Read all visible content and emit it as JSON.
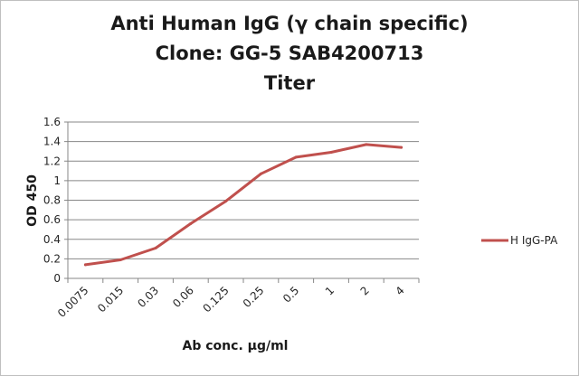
{
  "chart_data": {
    "type": "line",
    "title_lines": [
      "Anti Human IgG (γ chain specific)",
      "Clone: GG-5  SAB4200713",
      "Titer"
    ],
    "xlabel": "Ab conc. µg/ml",
    "ylabel": "OD 450",
    "categories": [
      "0.0075",
      "0.015",
      "0.03",
      "0.06",
      "0.125",
      "0.25",
      "0.5",
      "1",
      "2",
      "4"
    ],
    "y_ticks": [
      "0",
      "0.2",
      "0.4",
      "0.6",
      "0.8",
      "1",
      "1.2",
      "1.4",
      "1.6"
    ],
    "ylim": [
      0,
      1.6
    ],
    "grid": "horizontal",
    "legend_position": "right",
    "series": [
      {
        "name": "H IgG-PA",
        "color": "#c0504d",
        "values": [
          0.14,
          0.19,
          0.31,
          0.56,
          0.79,
          1.07,
          1.24,
          1.29,
          1.37,
          1.34
        ]
      }
    ]
  }
}
